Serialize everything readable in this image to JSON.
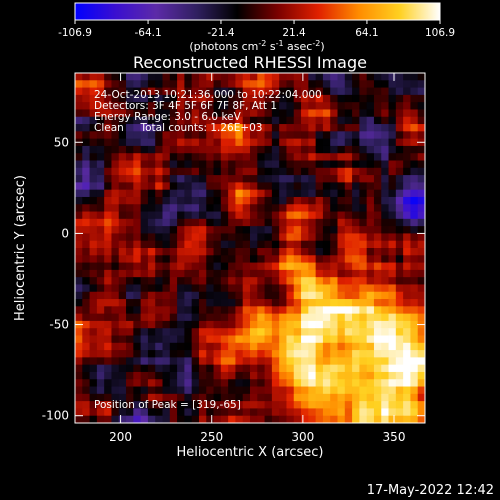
{
  "chart_data": {
    "type": "heatmap",
    "title": "Reconstructed RHESSI Image",
    "xlabel": "Heliocentric X (arcsec)",
    "ylabel": "Heliocentric Y (arcsec)",
    "xlim": [
      175,
      367
    ],
    "ylim": [
      -104,
      88
    ],
    "x_ticks": [
      200,
      250,
      300,
      350
    ],
    "y_ticks": [
      -100,
      -50,
      0,
      50
    ],
    "colorbar": {
      "min": -106.9,
      "max": 106.9,
      "ticks": [
        "-106.9",
        "-64.1",
        "-21.4",
        "21.4",
        "64.1",
        "106.9"
      ],
      "tick_values": [
        -106.9,
        -64.1,
        -21.4,
        21.4,
        64.1,
        106.9
      ],
      "unit_label": "(photons cm",
      "unit_sup1": "-2",
      "unit_mid": " s",
      "unit_sup2": "-1",
      "unit_mid2": " asec",
      "unit_sup3": "-2",
      "unit_end": ")",
      "colors": [
        "#0000ff",
        "#3a0fd0",
        "#5c2aa8",
        "#302060",
        "#000000",
        "#7a0000",
        "#e02000",
        "#ff8c00",
        "#ffd020",
        "#ffffff"
      ]
    },
    "annotations": [
      "24-Oct-2013 10:21:36.000 to 10:22:04.000",
      "Detectors: 3F 4F 5F 6F 7F 8F, Att 1",
      "Energy Range: 3.0 - 6.0 keV",
      "Clean     Total counts: 1.26E+03"
    ],
    "peak_label": "Position of Peak = [319,-65]",
    "peak": [
      319,
      -65
    ],
    "grid_nx": 48,
    "grid_ny": 48,
    "grid": false
  },
  "footer_timestamp": "17-May-2022 12:42"
}
